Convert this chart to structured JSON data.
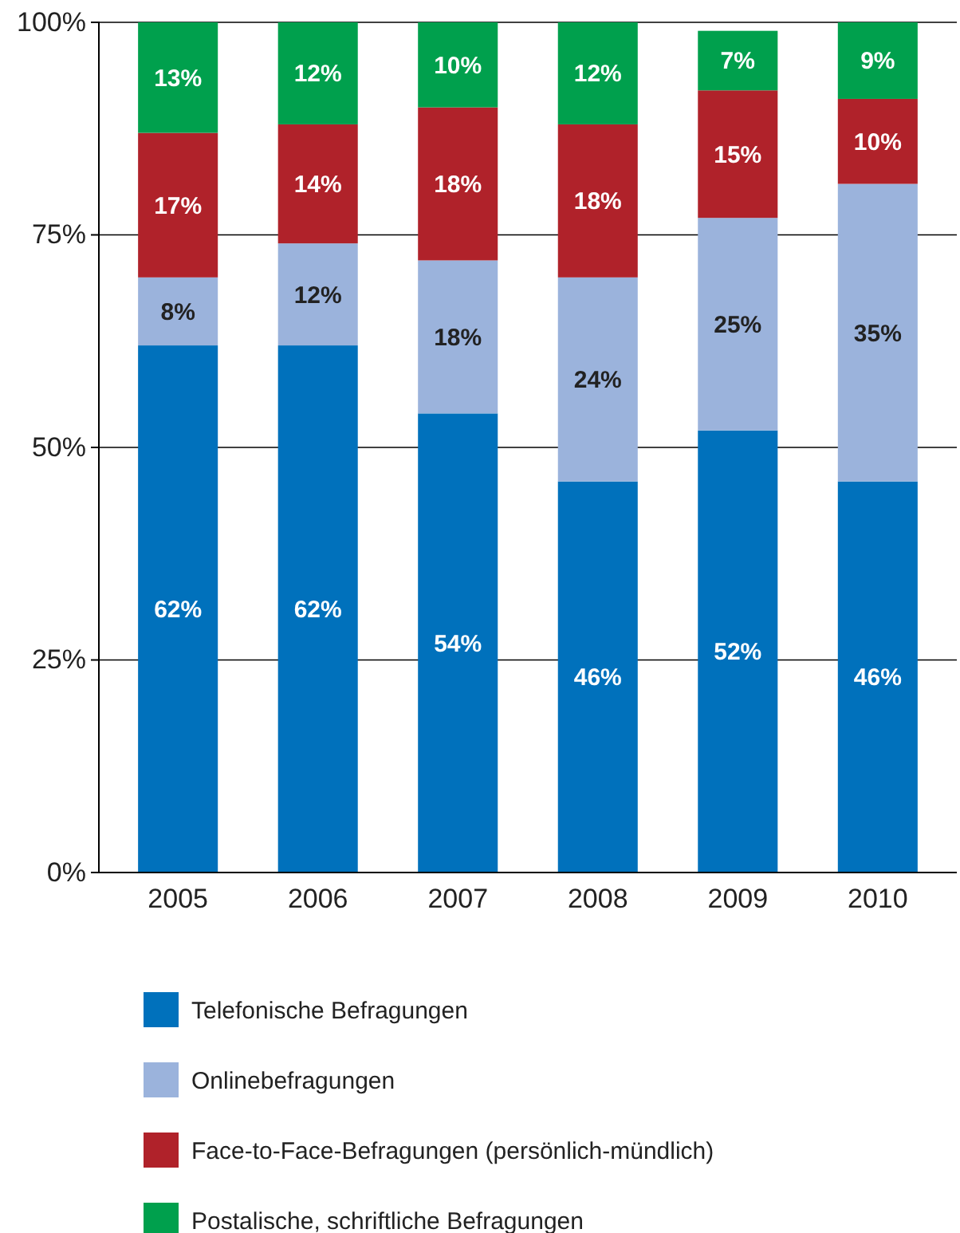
{
  "chart_data": {
    "type": "bar",
    "stacked": true,
    "categories": [
      "2005",
      "2006",
      "2007",
      "2008",
      "2009",
      "2010"
    ],
    "series": [
      {
        "name": "Telefonische Befragungen",
        "color": "#0071bc",
        "values": [
          62,
          62,
          54,
          46,
          52,
          46
        ],
        "value_labels": [
          "62%",
          "62%",
          "54%",
          "46%",
          "52%",
          "46%"
        ]
      },
      {
        "name": "Onlinebefragungen",
        "color": "#9bb3dc",
        "values": [
          8,
          12,
          18,
          24,
          25,
          35
        ],
        "value_labels": [
          "8%",
          "12%",
          "18%",
          "24%",
          "25%",
          "35%"
        ]
      },
      {
        "name": "Face-to-Face-Befragungen (persönlich-mündlich)",
        "color": "#b0222a",
        "values": [
          17,
          14,
          18,
          18,
          15,
          10
        ],
        "value_labels": [
          "17%",
          "14%",
          "18%",
          "18%",
          "15%",
          "10%"
        ]
      },
      {
        "name": "Postalische, schriftliche Befragungen",
        "color": "#00a04d",
        "values": [
          13,
          12,
          10,
          12,
          7,
          9
        ],
        "value_labels": [
          "13%",
          "12%",
          "10%",
          "12%",
          "7%",
          "9%"
        ]
      }
    ],
    "ylim": [
      0,
      100
    ],
    "yticks": [
      {
        "value": 0,
        "label": "0%"
      },
      {
        "value": 25,
        "label": "25%"
      },
      {
        "value": 50,
        "label": "50%"
      },
      {
        "value": 75,
        "label": "75%"
      },
      {
        "value": 100,
        "label": "100%"
      }
    ],
    "grid": "y",
    "legend": "bottom"
  }
}
